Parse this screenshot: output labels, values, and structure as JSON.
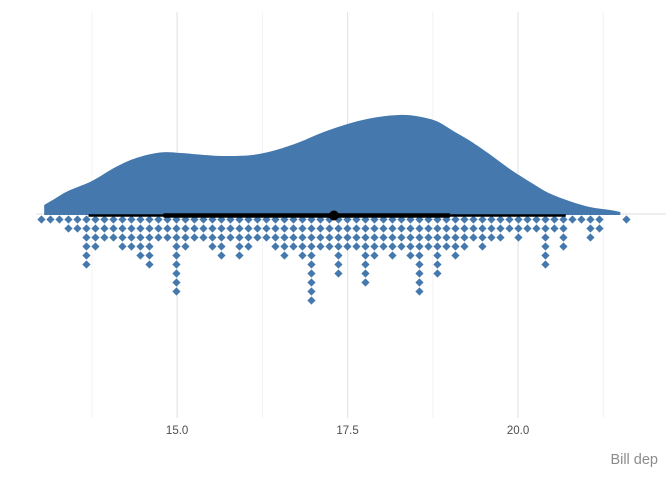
{
  "colors": {
    "slab": "#4578ad",
    "dots": "#4578ad",
    "interval": "#000000",
    "gridline_major": "#e4e4e4",
    "gridline_minor": "#f2f2f2",
    "tick_label": "#4d4d4d",
    "axis_title": "#8c8c8c",
    "background": "#ffffff"
  },
  "chart_data": {
    "type": "raincloud (halfeye density slab + median interval + hanging dotplot)",
    "variable": "Bill depth (mm)",
    "x_axis": {
      "title": "Bill dep",
      "ticks": [
        15.0,
        17.5,
        20.0
      ],
      "tick_labels": [
        "15.0",
        "17.5",
        "20.0"
      ],
      "minor_ticks": [
        13.75,
        16.25,
        18.75,
        21.25
      ],
      "lim": [
        12.93,
        22.17
      ],
      "grid": "vertical major + minor, horizontal at category baseline"
    },
    "density": {
      "x": [
        13.05,
        13.2,
        13.4,
        13.75,
        14.1,
        14.4,
        14.75,
        15.05,
        15.4,
        15.7,
        16.1,
        16.45,
        16.8,
        17.15,
        17.55,
        17.9,
        18.25,
        18.5,
        18.8,
        19.05,
        19.3,
        19.6,
        19.9,
        20.2,
        20.45,
        20.75,
        21.05,
        21.35,
        21.5
      ],
      "height_norm": [
        0.1,
        0.16,
        0.24,
        0.34,
        0.48,
        0.57,
        0.625,
        0.62,
        0.6,
        0.59,
        0.6,
        0.65,
        0.73,
        0.83,
        0.92,
        0.975,
        1.0,
        0.99,
        0.94,
        0.84,
        0.74,
        0.6,
        0.45,
        0.32,
        0.22,
        0.14,
        0.08,
        0.05,
        0.03
      ],
      "range": [
        13.1,
        21.5
      ]
    },
    "dotplot": {
      "side": "bottom",
      "x_start": 13.01,
      "x_step": 0.132,
      "counts": [
        1,
        1,
        1,
        2,
        2,
        6,
        4,
        3,
        3,
        4,
        4,
        5,
        6,
        3,
        3,
        9,
        4,
        3,
        3,
        4,
        5,
        3,
        5,
        4,
        3,
        3,
        4,
        5,
        4,
        5,
        10,
        4,
        4,
        7,
        4,
        4,
        8,
        5,
        4,
        5,
        4,
        5,
        9,
        4,
        7,
        4,
        5,
        4,
        3,
        4,
        3,
        3,
        2,
        3,
        2,
        2,
        6,
        2,
        4,
        1,
        1,
        3,
        2,
        0,
        0,
        1
      ]
    },
    "interval": {
      "median": 17.3,
      "interval_thick_66": [
        14.8,
        19.0
      ],
      "interval_thin_95": [
        13.7,
        20.7
      ]
    }
  }
}
